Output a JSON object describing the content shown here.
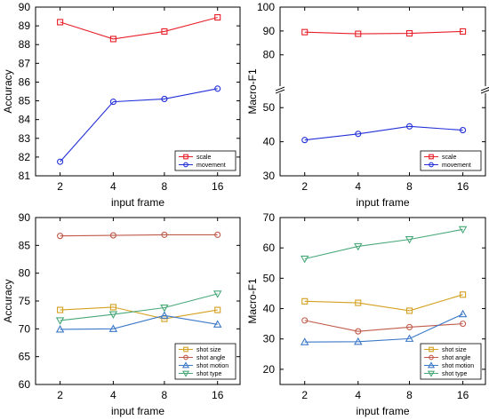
{
  "chart_data": [
    {
      "type": "line",
      "panel": "top-left",
      "xlabel": "input frame",
      "ylabel": "Accuracy",
      "x": [
        "2",
        "4",
        "8",
        "16"
      ],
      "ylim": [
        81,
        90
      ],
      "yticks": [
        "81",
        "82",
        "83",
        "84",
        "85",
        "86",
        "87",
        "88",
        "89",
        "90"
      ],
      "legend_position": "bottom-right",
      "series": [
        {
          "name": "scale",
          "color": "#e8202a",
          "marker": "square",
          "values": [
            89.2,
            88.3,
            88.7,
            89.45
          ]
        },
        {
          "name": "movement",
          "color": "#2330d8",
          "marker": "circle",
          "values": [
            81.75,
            84.95,
            85.1,
            85.65
          ]
        }
      ]
    },
    {
      "type": "line",
      "panel": "top-right",
      "xlabel": "input frame",
      "ylabel": "Macro-F1",
      "x": [
        "2",
        "4",
        "8",
        "16"
      ],
      "axis_break": true,
      "lower_range": [
        30,
        55
      ],
      "upper_range": [
        65,
        100
      ],
      "yticks": [
        "30",
        "40",
        "50",
        "80",
        "90",
        "100"
      ],
      "legend_position": "bottom-right",
      "series": [
        {
          "name": "scale",
          "color": "#e8202a",
          "marker": "square",
          "values": [
            89.5,
            88.8,
            89.0,
            89.8
          ]
        },
        {
          "name": "movement",
          "color": "#2330d8",
          "marker": "circle",
          "values": [
            40.5,
            42.3,
            44.5,
            43.4
          ]
        }
      ]
    },
    {
      "type": "line",
      "panel": "bottom-left",
      "xlabel": "input frame",
      "ylabel": "Accuracy",
      "x": [
        "2",
        "4",
        "8",
        "16"
      ],
      "ylim": [
        60,
        90
      ],
      "yticks": [
        "60",
        "65",
        "70",
        "75",
        "80",
        "85",
        "90"
      ],
      "legend_position": "bottom-right",
      "series": [
        {
          "name": "shot size",
          "color": "#d4a020",
          "marker": "square",
          "values": [
            73.4,
            73.9,
            71.8,
            73.4
          ]
        },
        {
          "name": "shot angle",
          "color": "#c05a4a",
          "marker": "circle",
          "values": [
            86.7,
            86.8,
            86.9,
            86.9
          ]
        },
        {
          "name": "shot motion",
          "color": "#3a78c8",
          "marker": "triangle-up",
          "values": [
            69.9,
            70.0,
            72.4,
            70.8
          ]
        },
        {
          "name": "shot type",
          "color": "#48a878",
          "marker": "triangle-down",
          "values": [
            71.5,
            72.6,
            73.8,
            76.3
          ]
        }
      ]
    },
    {
      "type": "line",
      "panel": "bottom-right",
      "xlabel": "input frame",
      "ylabel": "Macro-F1",
      "x": [
        "2",
        "4",
        "8",
        "16"
      ],
      "ylim": [
        15,
        70
      ],
      "yticks": [
        "20",
        "30",
        "40",
        "50",
        "60",
        "70"
      ],
      "legend_position": "bottom-right",
      "series": [
        {
          "name": "shot size",
          "color": "#d4a020",
          "marker": "square",
          "values": [
            42.4,
            41.9,
            39.3,
            44.6
          ]
        },
        {
          "name": "shot angle",
          "color": "#c05a4a",
          "marker": "circle",
          "values": [
            36.1,
            32.5,
            33.9,
            35.0
          ]
        },
        {
          "name": "shot motion",
          "color": "#3a78c8",
          "marker": "triangle-up",
          "values": [
            29.0,
            29.1,
            30.1,
            38.2
          ]
        },
        {
          "name": "shot type",
          "color": "#48a878",
          "marker": "triangle-down",
          "values": [
            56.4,
            60.5,
            62.8,
            66.1
          ]
        }
      ]
    }
  ]
}
